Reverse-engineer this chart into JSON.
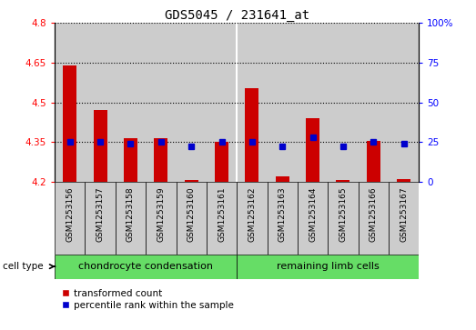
{
  "title": "GDS5045 / 231641_at",
  "samples": [
    "GSM1253156",
    "GSM1253157",
    "GSM1253158",
    "GSM1253159",
    "GSM1253160",
    "GSM1253161",
    "GSM1253162",
    "GSM1253163",
    "GSM1253164",
    "GSM1253165",
    "GSM1253166",
    "GSM1253167"
  ],
  "transformed_count": [
    4.64,
    4.47,
    4.365,
    4.365,
    4.205,
    4.35,
    4.555,
    4.22,
    4.44,
    4.205,
    4.355,
    4.21
  ],
  "percentile_rank": [
    25,
    25,
    24,
    25,
    22,
    25,
    25,
    22,
    28,
    22,
    25,
    24
  ],
  "ylim_left": [
    4.2,
    4.8
  ],
  "yticks_left": [
    4.2,
    4.35,
    4.5,
    4.65,
    4.8
  ],
  "ytick_labels_left": [
    "4.2",
    "4.35",
    "4.5",
    "4.65",
    "4.8"
  ],
  "ylim_right": [
    0,
    100
  ],
  "yticks_right": [
    0,
    25,
    50,
    75,
    100
  ],
  "ytick_labels_right": [
    "0",
    "25",
    "50",
    "75",
    "100%"
  ],
  "bar_color": "#cc0000",
  "dot_color": "#0000cc",
  "bar_base": 4.2,
  "group1_label": "chondrocyte condensation",
  "group2_label": "remaining limb cells",
  "group1_count": 6,
  "group2_count": 6,
  "cell_type_label": "cell type",
  "legend1": "transformed count",
  "legend2": "percentile rank within the sample",
  "group_bg": "#66dd66",
  "bar_bg": "#cccccc",
  "grid_color": "black"
}
